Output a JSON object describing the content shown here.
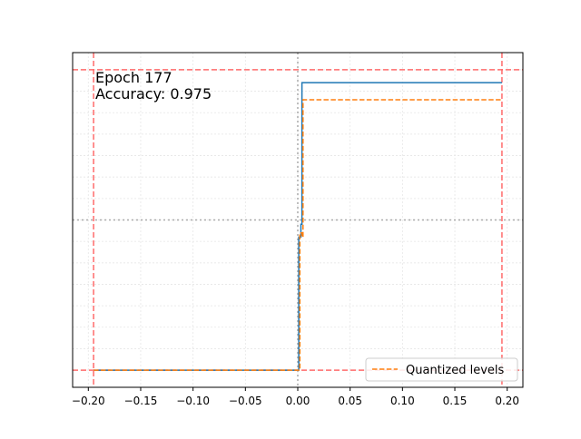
{
  "chart_data": {
    "type": "line",
    "annotation": {
      "epoch_text": "Epoch 177",
      "accuracy_text": "Accuracy: 0.975"
    },
    "xlim": [
      -0.215,
      0.215
    ],
    "ylim": [
      -0.28,
      1.28
    ],
    "x_ticks": [
      -0.2,
      -0.15,
      -0.1,
      -0.05,
      0.0,
      0.05,
      0.1,
      0.15,
      0.2
    ],
    "x_tick_labels": [
      "−0.20",
      "−0.15",
      "−0.10",
      "−0.05",
      "0.00",
      "0.05",
      "0.10",
      "0.15",
      "0.20"
    ],
    "y_ticks_shown": false,
    "grid": true,
    "legend": {
      "placement": "lower right",
      "entries": [
        {
          "label": "Quantized levels",
          "style": "dashed",
          "color": "#ff7f0e"
        }
      ]
    },
    "reference_lines": {
      "vertical_dashed_red": [
        -0.195,
        0.195
      ],
      "horizontal_dashed_red": [
        -0.2,
        1.2
      ],
      "vertical_dotted_gray": [
        0.0
      ],
      "horizontal_dotted_gray": [
        0.5
      ],
      "red_color": "#ff6b6b",
      "gray_color": "#aaaaaa"
    },
    "series": [
      {
        "style": "solid",
        "color": "#1f77b4",
        "x": [
          -0.195,
          0.001,
          0.001,
          0.003,
          0.003,
          0.004,
          0.004,
          0.195
        ],
        "y": [
          -0.2,
          -0.2,
          0.42,
          0.42,
          0.48,
          0.48,
          1.14,
          1.14
        ]
      },
      {
        "name": "Quantized levels",
        "style": "dashed",
        "color": "#ff7f0e",
        "x": [
          -0.195,
          0.002,
          0.002,
          0.004,
          0.004,
          0.005,
          0.005,
          0.195
        ],
        "y": [
          -0.2,
          -0.2,
          0.44,
          0.44,
          0.42,
          0.42,
          1.06,
          1.06
        ]
      }
    ]
  }
}
